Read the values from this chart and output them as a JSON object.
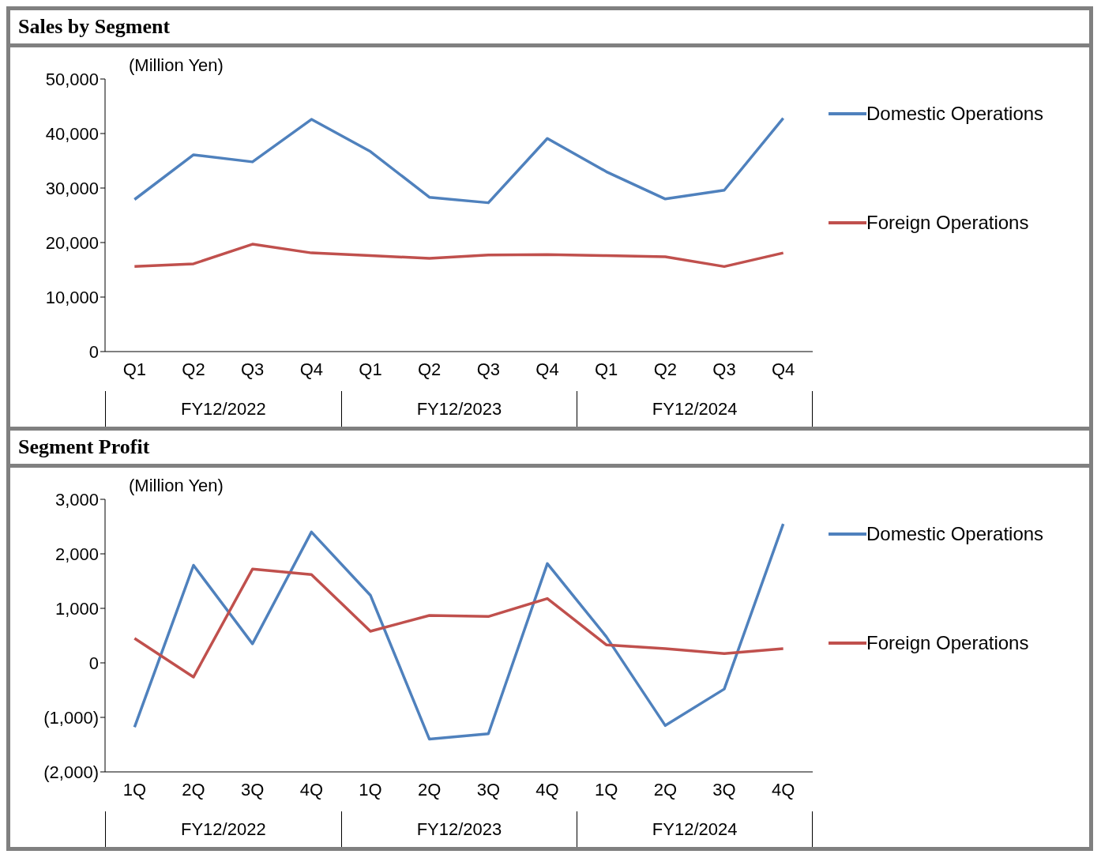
{
  "chart_data": [
    {
      "type": "line",
      "title": "Sales by Segment",
      "ylabel": "(Million Yen)",
      "categories": [
        "Q1",
        "Q2",
        "Q3",
        "Q4",
        "Q1",
        "Q2",
        "Q3",
        "Q4",
        "Q1",
        "Q2",
        "Q3",
        "Q4"
      ],
      "annotations": [
        "FY12/2022",
        "FY12/2023",
        "FY12/2024"
      ],
      "series": [
        {
          "name": "Domestic Operations",
          "color": "#4f81bd",
          "values": [
            27900,
            36100,
            34800,
            42600,
            36700,
            28300,
            27300,
            39100,
            33000,
            28000,
            29600,
            42800
          ]
        },
        {
          "name": "Foreign Operations",
          "color": "#c0504d",
          "values": [
            15600,
            16100,
            19700,
            18100,
            17600,
            17100,
            17700,
            17800,
            17600,
            17400,
            15600,
            18100
          ]
        }
      ],
      "ylim": [
        0,
        50000
      ],
      "yticks": [
        0,
        {
          "value": 10000,
          "label": "10,000"
        },
        {
          "value": 20000,
          "label": "20,000"
        },
        {
          "value": 30000,
          "label": "30,000"
        },
        {
          "value": 40000,
          "label": "40,000"
        },
        {
          "value": 50000,
          "label": "50,000"
        }
      ],
      "grid": false,
      "legend": "right",
      "marker": "none",
      "line_style": "solid"
    },
    {
      "type": "line",
      "title": "Segment Profit",
      "ylabel": "(Million Yen)",
      "categories": [
        "1Q",
        "2Q",
        "3Q",
        "4Q",
        "1Q",
        "2Q",
        "3Q",
        "4Q",
        "1Q",
        "2Q",
        "3Q",
        "4Q"
      ],
      "annotations": [
        "FY12/2022",
        "FY12/2023",
        "FY12/2024"
      ],
      "series": [
        {
          "name": "Domestic Operations",
          "color": "#4f81bd",
          "values": [
            -1180,
            1790,
            350,
            2400,
            1240,
            -1400,
            -1300,
            1820,
            480,
            -1150,
            -480,
            2550
          ]
        },
        {
          "name": "Foreign Operations",
          "color": "#c0504d",
          "values": [
            450,
            -260,
            1720,
            1620,
            580,
            870,
            850,
            1180,
            330,
            260,
            170,
            260
          ]
        }
      ],
      "ylim": [
        -2000,
        3000
      ],
      "yticks": [
        {
          "value": -2000,
          "label": "(2,000)"
        },
        {
          "value": -1000,
          "label": "(1,000)"
        },
        0,
        {
          "value": 1000,
          "label": "1,000"
        },
        {
          "value": 2000,
          "label": "2,000"
        },
        {
          "value": 3000,
          "label": "3,000"
        }
      ],
      "grid": false,
      "legend": "right",
      "marker": "none",
      "line_style": "solid"
    }
  ]
}
